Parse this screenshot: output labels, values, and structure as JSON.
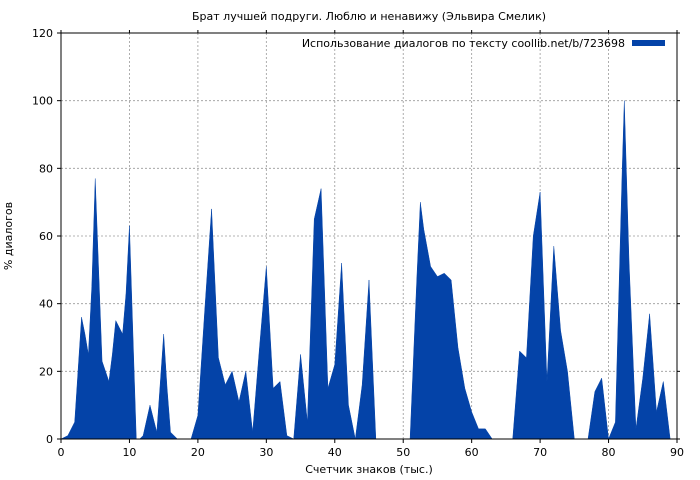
{
  "chart_data": {
    "type": "area",
    "title": "Брат лучшей подруги. Люблю и ненавижу (Эльвира Смелик)",
    "xlabel": "Счетчик знаков (тыс.)",
    "ylabel": "% диалогов",
    "xlim": [
      0,
      90
    ],
    "ylim": [
      0,
      120
    ],
    "xticks": [
      0,
      10,
      20,
      30,
      40,
      50,
      60,
      70,
      80,
      90
    ],
    "yticks": [
      0,
      20,
      40,
      60,
      80,
      100,
      120
    ],
    "grid": true,
    "legend_position": "top-right",
    "colors": {
      "series": "#0443a8",
      "grid": "#9a9a9a",
      "axis": "#000000"
    },
    "series": [
      {
        "name": "Использование диалогов по тексту coollib.net/b/723698",
        "x": [
          0,
          1,
          2,
          3,
          3.5,
          4,
          4.5,
          5,
          5.5,
          6,
          7,
          7.5,
          8,
          8.5,
          9,
          9.5,
          10,
          11,
          11.5,
          12,
          13,
          14,
          15,
          15.5,
          16,
          17,
          18,
          19,
          20,
          21,
          22,
          23,
          24,
          25,
          26,
          27,
          28,
          29,
          30,
          31,
          32,
          33,
          34,
          35,
          36,
          37,
          38,
          39,
          40,
          41,
          42,
          43,
          44,
          45,
          46,
          47,
          48,
          49,
          50,
          51,
          52,
          52.5,
          53,
          54,
          55,
          56,
          57,
          58,
          59,
          60,
          61,
          62,
          63,
          64,
          65,
          66,
          67,
          68,
          69,
          70,
          71,
          72,
          73,
          74,
          75,
          76,
          77,
          78,
          79,
          80,
          81,
          82,
          82.3,
          83,
          84,
          85,
          86,
          87,
          88,
          89,
          90
        ],
        "values": [
          0,
          1,
          5,
          36,
          31,
          25,
          45,
          77,
          50,
          23,
          17,
          25,
          35,
          33,
          31,
          43,
          63,
          0,
          0,
          1,
          10,
          2,
          31,
          15,
          2,
          0,
          0,
          0,
          7,
          38,
          68,
          24,
          16,
          20,
          11,
          20,
          2,
          27,
          51,
          15,
          17,
          1,
          0,
          25,
          5,
          65,
          74,
          15,
          22,
          52,
          10,
          0,
          16,
          47,
          0,
          0,
          0,
          0,
          0,
          0,
          48,
          70,
          62,
          51,
          48,
          49,
          47,
          27,
          15,
          8,
          3,
          3,
          0,
          0,
          0,
          0,
          26,
          24,
          60,
          73,
          17,
          57,
          32,
          20,
          0,
          0,
          0,
          14,
          18,
          0,
          5,
          80,
          100,
          52,
          3,
          18,
          37,
          8,
          17,
          0,
          0
        ]
      }
    ]
  }
}
